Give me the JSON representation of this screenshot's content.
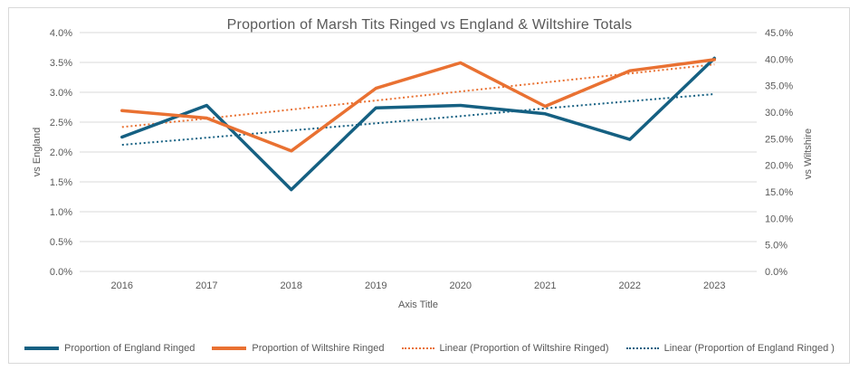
{
  "chart_data": {
    "type": "line",
    "title": "Proportion of Marsh Tits Ringed vs England & Wiltshire Totals",
    "xlabel": "Axis Title",
    "ylabel_left": "vs England",
    "ylabel_right": "vs Wiltshire",
    "categories": [
      "2016",
      "2017",
      "2018",
      "2019",
      "2020",
      "2021",
      "2022",
      "2023"
    ],
    "left_axis": {
      "min": 0.0,
      "max": 4.0,
      "tick_step": 0.5,
      "ticks": [
        "4.0%",
        "3.5%",
        "3.0%",
        "2.5%",
        "2.0%",
        "1.5%",
        "1.0%",
        "0.5%",
        "0.0%"
      ]
    },
    "right_axis": {
      "min": 0.0,
      "max": 45.0,
      "tick_step": 5.0,
      "ticks": [
        "45.0%",
        "40.0%",
        "35.0%",
        "30.0%",
        "25.0%",
        "20.0%",
        "15.0%",
        "10.0%",
        "5.0%",
        "0.0%"
      ]
    },
    "grid": true,
    "legend_position": "bottom",
    "colors": {
      "england_blue": "#156082",
      "wiltshire_orange": "#E97132",
      "gridline": "#D9D9D9",
      "text": "#595959",
      "frame_border": "#D9D9D9"
    },
    "series": [
      {
        "name": "Proportion of England Ringed",
        "axis": "left",
        "style": "solid",
        "color": "#156082",
        "values": [
          2.25,
          2.78,
          1.37,
          2.74,
          2.78,
          2.64,
          2.21,
          3.57
        ]
      },
      {
        "name": "Proportion of Wiltshire Ringed",
        "axis": "right",
        "style": "solid",
        "color": "#E97132",
        "values": [
          30.3,
          28.9,
          22.7,
          34.5,
          39.3,
          31.1,
          37.8,
          39.9
        ]
      },
      {
        "name": "Linear (Proportion of Wiltshire Ringed)",
        "axis": "right",
        "style": "dotted",
        "color": "#E97132",
        "values": [
          27.2,
          28.8,
          30.5,
          32.2,
          33.9,
          35.6,
          37.3,
          39.0
        ]
      },
      {
        "name": "Linear (Proportion of England Ringed )",
        "axis": "left",
        "style": "dotted",
        "color": "#156082",
        "values": [
          2.12,
          2.24,
          2.36,
          2.48,
          2.6,
          2.73,
          2.85,
          2.97
        ]
      }
    ],
    "legend": [
      {
        "label": "Proportion of England Ringed",
        "style": "solid",
        "color": "#156082"
      },
      {
        "label": "Proportion of Wiltshire Ringed",
        "style": "solid",
        "color": "#E97132"
      },
      {
        "label": "Linear (Proportion of Wiltshire Ringed)",
        "style": "dotted",
        "color": "#E97132"
      },
      {
        "label": "Linear (Proportion of England Ringed )",
        "style": "dotted",
        "color": "#156082"
      }
    ]
  }
}
